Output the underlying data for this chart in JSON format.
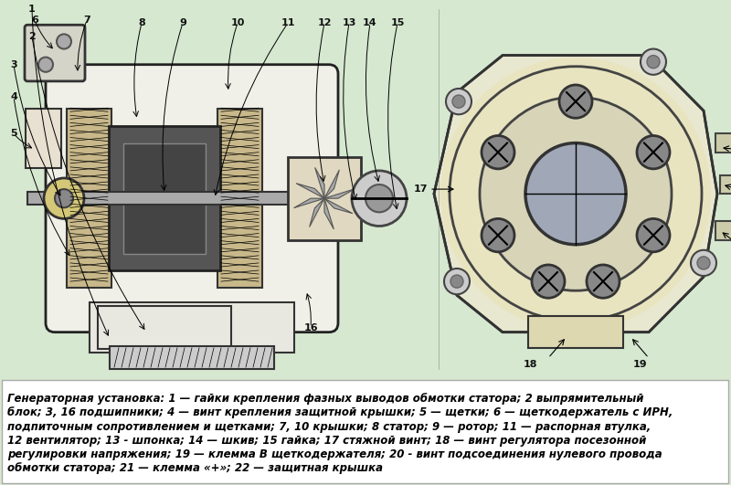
{
  "background_color": "#d6e8d0",
  "diagram_image_placeholder": true,
  "title": "",
  "caption_lines": [
    "Генераторная установка: 1 — гайки крепления фазных выводов обмотки статора; 2 выпрямительный",
    "блок; 3, 16 подшипники; 4 — винт крепления защитной крышки; 5 — щетки; 6 — щеткодержатель с ИРН,",
    "подпиточным сопротивлением и щетками; 7, 10 крышки; 8 статор; 9 — ротор; 11 — распорная втулка,",
    "12 вентилятор; 13 - шпонка; 14 — шкив; 15 гайка; 17 стяжной винт; 18 — винт регулятора посезонной",
    "регулировки напряжения; 19 — клемма В щеткодержателя; 20 - винт подсоединения нулевого провода",
    "обмотки статора; 21 — клемма «+»; 22 — защитная крышка"
  ],
  "caption_bg": "#ffffff",
  "caption_font_size": 8.5,
  "caption_text_color": "#000000",
  "diagram_bg": "#d6e8d0",
  "fig_width": 8.0,
  "fig_height": 5.31,
  "dpi": 100
}
